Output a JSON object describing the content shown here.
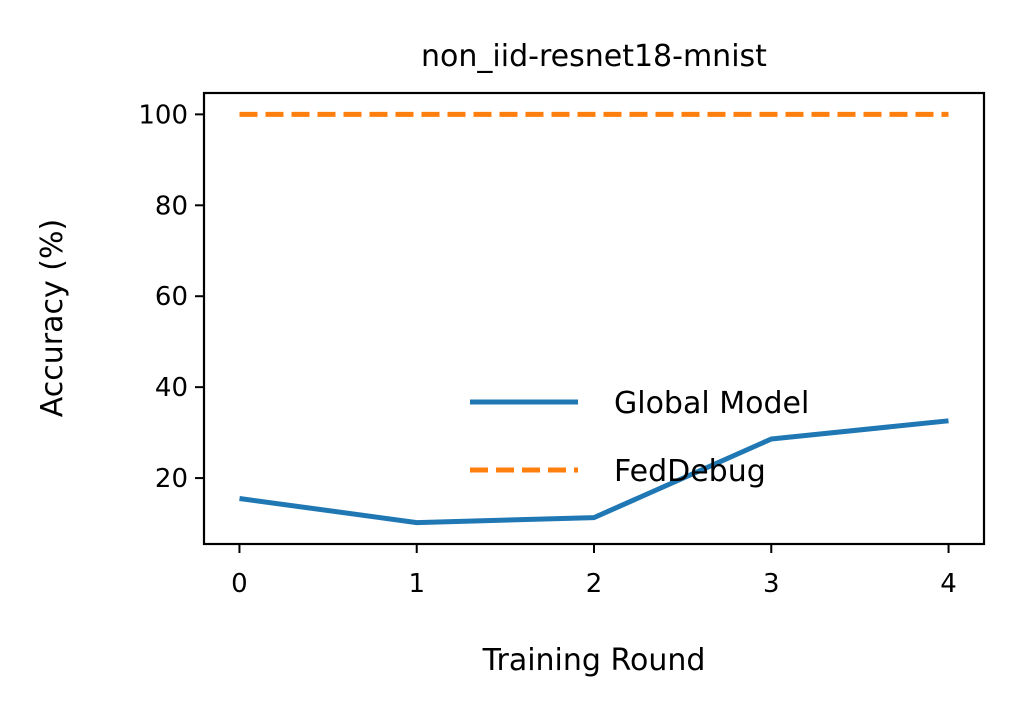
{
  "chart_data": {
    "type": "line",
    "title": "non_iid-resnet18-mnist",
    "xlabel": "Training Round",
    "ylabel": "Accuracy (%)",
    "x": [
      0,
      1,
      2,
      3,
      4
    ],
    "xlim": [
      -0.2,
      4.2
    ],
    "ylim": [
      5.5,
      104.7
    ],
    "xticks": [
      "0",
      "1",
      "2",
      "3",
      "4"
    ],
    "yticks": [
      "20",
      "40",
      "60",
      "80",
      "100"
    ],
    "grid": false,
    "legend_position": "lower-right",
    "series": [
      {
        "name": "Global Model",
        "values": [
          15.5,
          10.2,
          11.3,
          28.6,
          32.6
        ],
        "color": "#1f77b4",
        "style": "solid"
      },
      {
        "name": "FedDebug",
        "values": [
          100,
          100,
          100,
          100,
          100
        ],
        "color": "#ff7f0e",
        "style": "dashed"
      }
    ]
  }
}
